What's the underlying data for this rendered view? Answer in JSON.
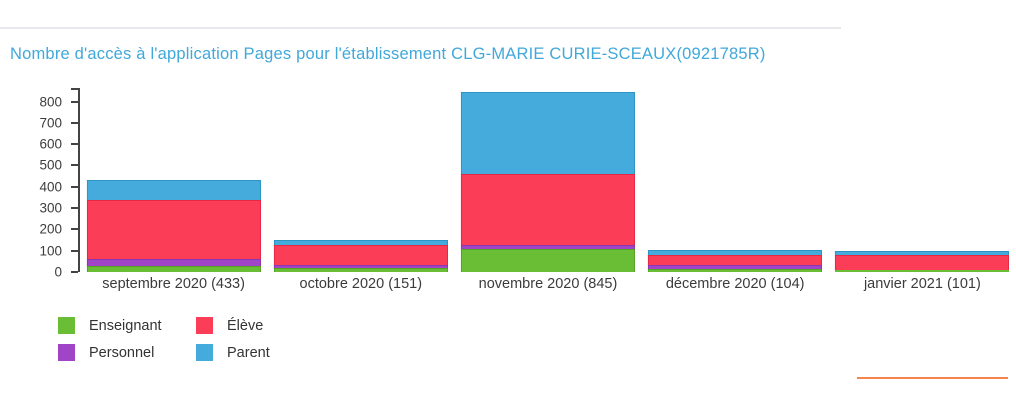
{
  "page": {
    "title": "Nombre d'accès à l'application Pages pour l'établissement CLG-MARIE CURIE-SCEAUX(0921785R)",
    "title_color": "#41a8da",
    "divider_color": "#e9e9ed",
    "accent_line_color": "#f5854e"
  },
  "chart_data": {
    "type": "bar",
    "stacked": true,
    "title": "Nombre d'accès à l'application Pages pour l'établissement CLG-MARIE CURIE-SCEAUX(0921785R)",
    "categories": [
      "septembre 2020 (433)",
      "octobre 2020 (151)",
      "novembre 2020 (845)",
      "décembre 2020 (104)",
      "janvier 2021 (101)"
    ],
    "series": [
      {
        "name": "Enseignant",
        "color": "#69be35",
        "border": "#55a227",
        "values": [
          29,
          18,
          107,
          13,
          8
        ]
      },
      {
        "name": "Personnel",
        "color": "#a044c8",
        "border": "#8c35b0",
        "values": [
          34,
          13,
          22,
          22,
          1
        ]
      },
      {
        "name": "Élève",
        "color": "#fb3d58",
        "border": "#e52945",
        "values": [
          273,
          97,
          332,
          47,
          70
        ]
      },
      {
        "name": "Parent",
        "color": "#45abdc",
        "border": "#2e94c4",
        "values": [
          97,
          23,
          384,
          22,
          22
        ]
      }
    ],
    "totals": [
      433,
      151,
      845,
      104,
      101
    ],
    "legend_order": [
      "Enseignant",
      "Élève",
      "Personnel",
      "Parent"
    ],
    "ylim": [
      0,
      800
    ],
    "ytick_step": 100,
    "grid": false,
    "legend_position": "bottom-left",
    "xlabel": "",
    "ylabel": ""
  }
}
